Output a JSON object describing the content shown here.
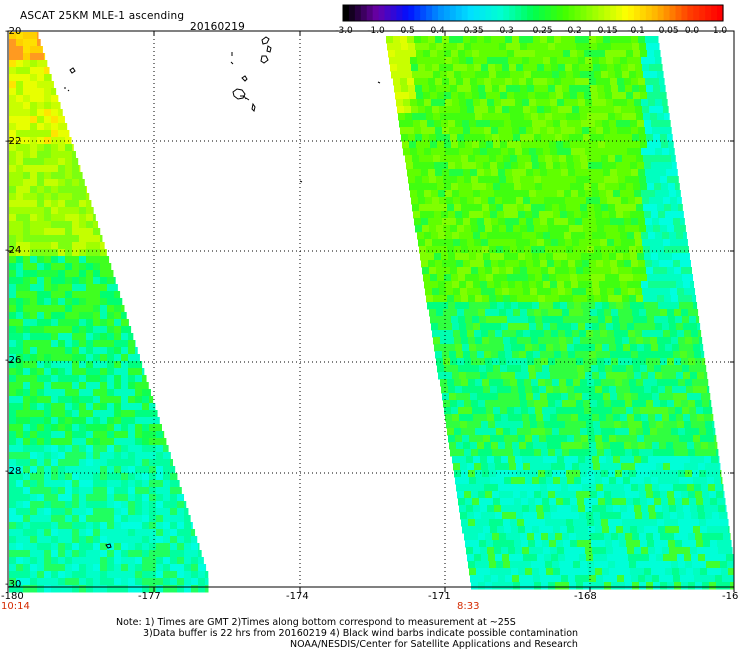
{
  "title": "ASCAT 25KM MLE-1 ascending",
  "date": "20160219",
  "colorbar": {
    "labels": [
      "-3.0",
      "-1.0",
      "-0.5",
      "-0.4",
      "-0.35",
      "-0.3",
      "-0.25",
      "-0.2",
      "-0.15",
      "-0.1",
      "-0.05",
      "0.0",
      "1.0"
    ],
    "colors": [
      "#000000",
      "#6a00a8",
      "#0010ff",
      "#0090ff",
      "#00e0ff",
      "#00ffd0",
      "#00ff50",
      "#40ff00",
      "#a0ff00",
      "#ffff00",
      "#ffb000",
      "#ff4000",
      "#ff0000"
    ]
  },
  "axes": {
    "lat_labels": [
      "-20",
      "-22",
      "-24",
      "-26",
      "-28",
      "-30"
    ],
    "lon_labels": [
      "-180",
      "-177",
      "-174",
      "-171",
      "-168",
      "-16"
    ],
    "lat_range": [
      -20,
      -30
    ],
    "lon_range": [
      -180,
      -165
    ]
  },
  "time_labels": [
    "10:14",
    "8:33"
  ],
  "notes": [
    "Note: 1) Times are GMT 2)Times along bottom correspond to measurement at ~25S",
    "3)Data buffer is 22 hrs from 20160219 4) Black wind barbs indicate possible contamination",
    "NOAA/NESDIS/Center for Satellite Applications and Research"
  ]
}
